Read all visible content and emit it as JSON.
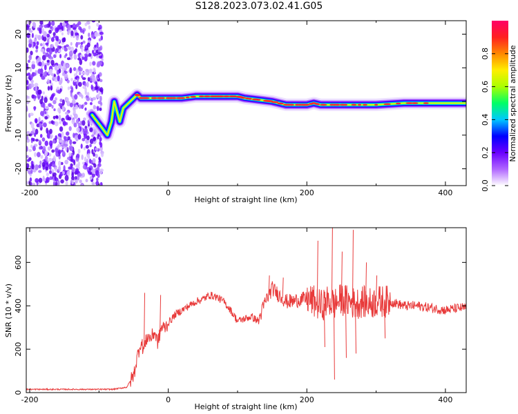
{
  "figure": {
    "title": "S128.2023.073.02.41.G05"
  },
  "chart_data": [
    {
      "type": "heatmap",
      "xlabel": "Height of straight line (km)",
      "ylabel": "Frequency (Hz)",
      "xlim": [
        -205,
        430
      ],
      "ylim": [
        -25,
        24
      ],
      "xticks": [
        -200,
        0,
        200,
        400
      ],
      "yticks": [
        -20,
        -10,
        0,
        10,
        20
      ],
      "colorbar": {
        "label": "Normalized spectral amplitude",
        "range": [
          0,
          1
        ],
        "ticks": [
          "0.0",
          "0.2",
          "0.4",
          "0.6",
          "0.8"
        ],
        "colors": [
          "#ffffff",
          "#b066ff",
          "#6a00ff",
          "#0000ff",
          "#00c8ff",
          "#00ff66",
          "#aaff00",
          "#ffee00",
          "#ff8800",
          "#ff2020",
          "#ff0066"
        ]
      },
      "noise_region_x": [
        -205,
        -95
      ],
      "peak_frequency_track": {
        "x": [
          -110,
          -95,
          -88,
          -82,
          -78,
          -74,
          -70,
          -65,
          -60,
          -55,
          -50,
          -45,
          -40,
          -30,
          -20,
          0,
          20,
          40,
          60,
          80,
          100,
          110,
          130,
          150,
          170,
          190,
          200,
          210,
          220,
          240,
          260,
          300,
          340,
          380,
          430
        ],
        "y": [
          -4,
          -8,
          -10,
          -6,
          0,
          -3,
          -6,
          -2,
          -1,
          0,
          1,
          2,
          1,
          1,
          1,
          1,
          1,
          1.5,
          1.5,
          1.5,
          1.5,
          1,
          0.5,
          0,
          -1,
          -1,
          -1,
          -0.5,
          -1,
          -1,
          -1,
          -1,
          -0.5,
          -0.5,
          -0.5
        ]
      }
    },
    {
      "type": "line",
      "xlabel": "Height of straight line (km)",
      "ylabel": "SNR (10 * v/v)",
      "xlim": [
        -205,
        430
      ],
      "ylim": [
        0,
        760
      ],
      "xticks": [
        -200,
        0,
        200,
        400
      ],
      "yticks": [
        0,
        200,
        400,
        600
      ],
      "color": "#e83a3a",
      "series": [
        {
          "x": [
            -205,
            -180,
            -150,
            -120,
            -100,
            -80,
            -60,
            -50,
            -45,
            -40,
            -35,
            -30,
            -25,
            -20,
            -15,
            -10,
            -5,
            0,
            10,
            20,
            30,
            40,
            50,
            60,
            70,
            80,
            90,
            100,
            110,
            120,
            130,
            140,
            150,
            160,
            170,
            180,
            190,
            200,
            210,
            220,
            230,
            240,
            250,
            260,
            270,
            280,
            290,
            300,
            320,
            340,
            360,
            380,
            400,
            420,
            430
          ],
          "y": [
            15,
            15,
            15,
            15,
            15,
            15,
            25,
            80,
            160,
            230,
            200,
            260,
            250,
            280,
            230,
            300,
            300,
            320,
            360,
            380,
            400,
            420,
            430,
            450,
            440,
            420,
            380,
            330,
            340,
            350,
            330,
            420,
            480,
            450,
            420,
            420,
            430,
            430,
            420,
            400,
            420,
            410,
            430,
            420,
            410,
            420,
            410,
            420,
            420,
            400,
            400,
            390,
            380,
            390,
            390
          ]
        }
      ],
      "spikes": [
        {
          "x": -35,
          "y": 460
        },
        {
          "x": -12,
          "y": 450
        },
        {
          "x": 145,
          "y": 540
        },
        {
          "x": 165,
          "y": 530
        },
        {
          "x": 215,
          "y": 700
        },
        {
          "x": 225,
          "y": 210
        },
        {
          "x": 236,
          "y": 760
        },
        {
          "x": 239,
          "y": 60
        },
        {
          "x": 250,
          "y": 650
        },
        {
          "x": 256,
          "y": 160
        },
        {
          "x": 266,
          "y": 750
        },
        {
          "x": 270,
          "y": 180
        },
        {
          "x": 285,
          "y": 600
        },
        {
          "x": 300,
          "y": 540
        },
        {
          "x": 312,
          "y": 250
        }
      ]
    }
  ]
}
